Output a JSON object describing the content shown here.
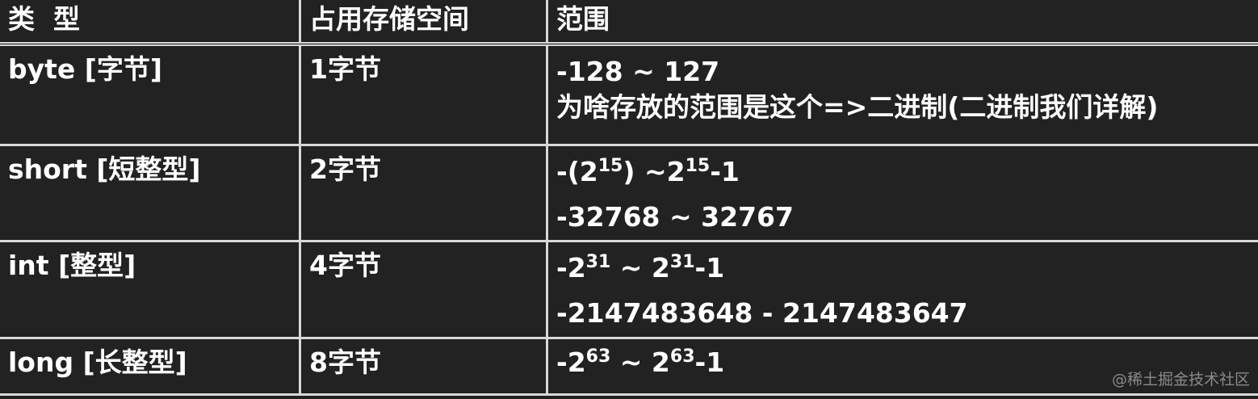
{
  "headers": {
    "type": "类  型",
    "size": "占用存储空间",
    "range": "范围"
  },
  "rows": [
    {
      "type": "byte [字节]",
      "size": "1字节",
      "line1": "-128 ~ 127",
      "line2": "为啥存放的范围是这个=>二进制(二进制我们详解)"
    },
    {
      "type": "short [短整型]",
      "size": "2字节",
      "l1a": "-(2",
      "l1b": "15",
      "l1c": ") ~2",
      "l1d": "15",
      "l1e": "-1",
      "line2": "-32768 ~ 32767"
    },
    {
      "type": "int [整型]",
      "size": "4字节",
      "l1a": "-2",
      "l1b": "31",
      "l1c": " ~ 2",
      "l1d": "31",
      "l1e": "-1",
      "line2": "-2147483648 - 2147483647"
    },
    {
      "type": "long [长整型]",
      "size": "8字节",
      "l1a": "-2",
      "l1b": "63",
      "l1c": " ~ 2",
      "l1d": "63",
      "l1e": "-1"
    }
  ],
  "watermark": "@稀土掘金技术社区"
}
